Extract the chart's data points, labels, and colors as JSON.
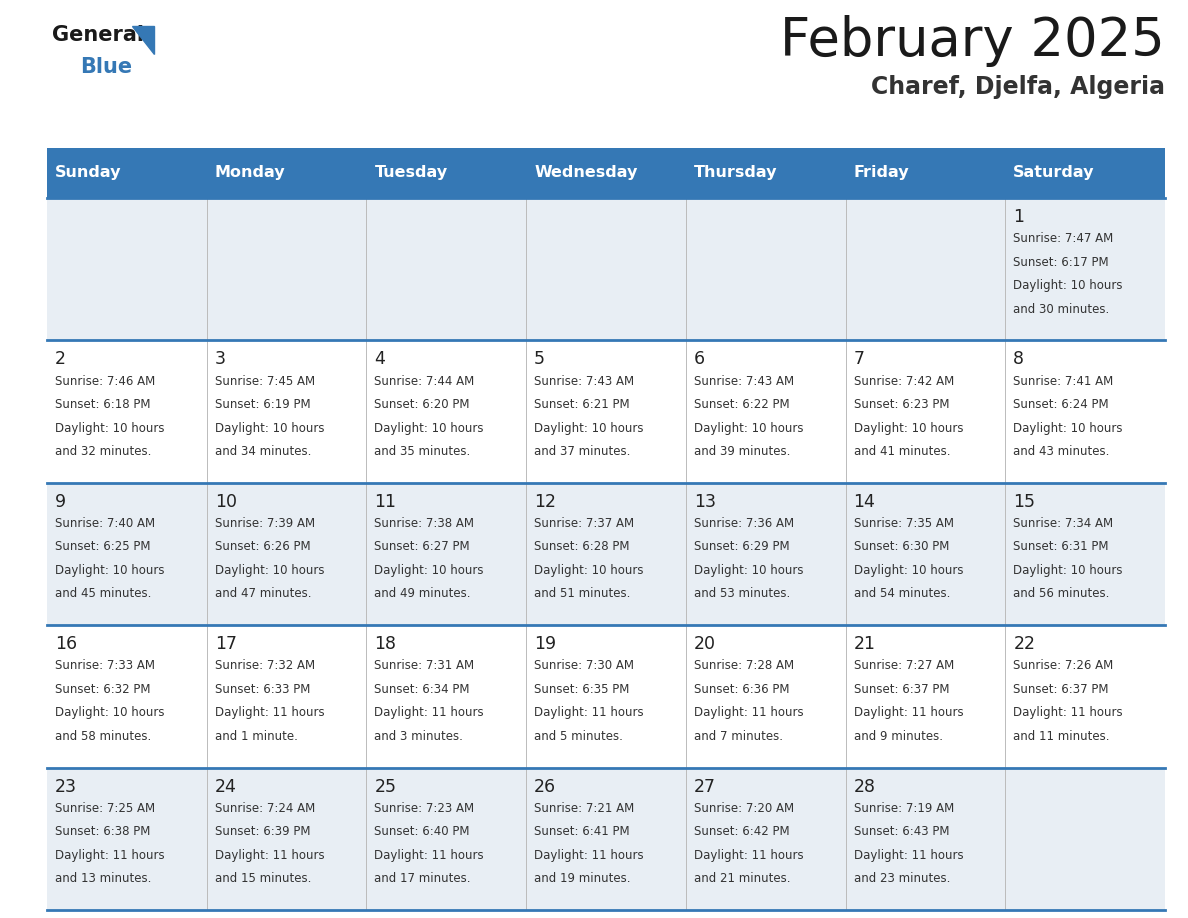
{
  "title": "February 2025",
  "subtitle": "Charef, Djelfa, Algeria",
  "header_bg_color": "#3578b5",
  "header_text_color": "#ffffff",
  "day_names": [
    "Sunday",
    "Monday",
    "Tuesday",
    "Wednesday",
    "Thursday",
    "Friday",
    "Saturday"
  ],
  "bg_color": "#ffffff",
  "cell_bg_light": "#e8eef4",
  "cell_bg_white": "#ffffff",
  "day_number_color": "#222222",
  "info_text_color": "#333333",
  "grid_line_color": "#3578b5",
  "title_color": "#1a1a1a",
  "subtitle_color": "#333333",
  "logo_general_color": "#1a1a1a",
  "logo_blue_color": "#3578b5",
  "logo_triangle_color": "#3578b5",
  "calendar_data": [
    [
      null,
      null,
      null,
      null,
      null,
      null,
      {
        "day": 1,
        "sunrise": "7:47 AM",
        "sunset": "6:17 PM",
        "daylight": "10 hours and 30 minutes."
      }
    ],
    [
      {
        "day": 2,
        "sunrise": "7:46 AM",
        "sunset": "6:18 PM",
        "daylight": "10 hours and 32 minutes."
      },
      {
        "day": 3,
        "sunrise": "7:45 AM",
        "sunset": "6:19 PM",
        "daylight": "10 hours and 34 minutes."
      },
      {
        "day": 4,
        "sunrise": "7:44 AM",
        "sunset": "6:20 PM",
        "daylight": "10 hours and 35 minutes."
      },
      {
        "day": 5,
        "sunrise": "7:43 AM",
        "sunset": "6:21 PM",
        "daylight": "10 hours and 37 minutes."
      },
      {
        "day": 6,
        "sunrise": "7:43 AM",
        "sunset": "6:22 PM",
        "daylight": "10 hours and 39 minutes."
      },
      {
        "day": 7,
        "sunrise": "7:42 AM",
        "sunset": "6:23 PM",
        "daylight": "10 hours and 41 minutes."
      },
      {
        "day": 8,
        "sunrise": "7:41 AM",
        "sunset": "6:24 PM",
        "daylight": "10 hours and 43 minutes."
      }
    ],
    [
      {
        "day": 9,
        "sunrise": "7:40 AM",
        "sunset": "6:25 PM",
        "daylight": "10 hours and 45 minutes."
      },
      {
        "day": 10,
        "sunrise": "7:39 AM",
        "sunset": "6:26 PM",
        "daylight": "10 hours and 47 minutes."
      },
      {
        "day": 11,
        "sunrise": "7:38 AM",
        "sunset": "6:27 PM",
        "daylight": "10 hours and 49 minutes."
      },
      {
        "day": 12,
        "sunrise": "7:37 AM",
        "sunset": "6:28 PM",
        "daylight": "10 hours and 51 minutes."
      },
      {
        "day": 13,
        "sunrise": "7:36 AM",
        "sunset": "6:29 PM",
        "daylight": "10 hours and 53 minutes."
      },
      {
        "day": 14,
        "sunrise": "7:35 AM",
        "sunset": "6:30 PM",
        "daylight": "10 hours and 54 minutes."
      },
      {
        "day": 15,
        "sunrise": "7:34 AM",
        "sunset": "6:31 PM",
        "daylight": "10 hours and 56 minutes."
      }
    ],
    [
      {
        "day": 16,
        "sunrise": "7:33 AM",
        "sunset": "6:32 PM",
        "daylight": "10 hours and 58 minutes."
      },
      {
        "day": 17,
        "sunrise": "7:32 AM",
        "sunset": "6:33 PM",
        "daylight": "11 hours and 1 minute."
      },
      {
        "day": 18,
        "sunrise": "7:31 AM",
        "sunset": "6:34 PM",
        "daylight": "11 hours and 3 minutes."
      },
      {
        "day": 19,
        "sunrise": "7:30 AM",
        "sunset": "6:35 PM",
        "daylight": "11 hours and 5 minutes."
      },
      {
        "day": 20,
        "sunrise": "7:28 AM",
        "sunset": "6:36 PM",
        "daylight": "11 hours and 7 minutes."
      },
      {
        "day": 21,
        "sunrise": "7:27 AM",
        "sunset": "6:37 PM",
        "daylight": "11 hours and 9 minutes."
      },
      {
        "day": 22,
        "sunrise": "7:26 AM",
        "sunset": "6:37 PM",
        "daylight": "11 hours and 11 minutes."
      }
    ],
    [
      {
        "day": 23,
        "sunrise": "7:25 AM",
        "sunset": "6:38 PM",
        "daylight": "11 hours and 13 minutes."
      },
      {
        "day": 24,
        "sunrise": "7:24 AM",
        "sunset": "6:39 PM",
        "daylight": "11 hours and 15 minutes."
      },
      {
        "day": 25,
        "sunrise": "7:23 AM",
        "sunset": "6:40 PM",
        "daylight": "11 hours and 17 minutes."
      },
      {
        "day": 26,
        "sunrise": "7:21 AM",
        "sunset": "6:41 PM",
        "daylight": "11 hours and 19 minutes."
      },
      {
        "day": 27,
        "sunrise": "7:20 AM",
        "sunset": "6:42 PM",
        "daylight": "11 hours and 21 minutes."
      },
      {
        "day": 28,
        "sunrise": "7:19 AM",
        "sunset": "6:43 PM",
        "daylight": "11 hours and 23 minutes."
      },
      null
    ]
  ]
}
